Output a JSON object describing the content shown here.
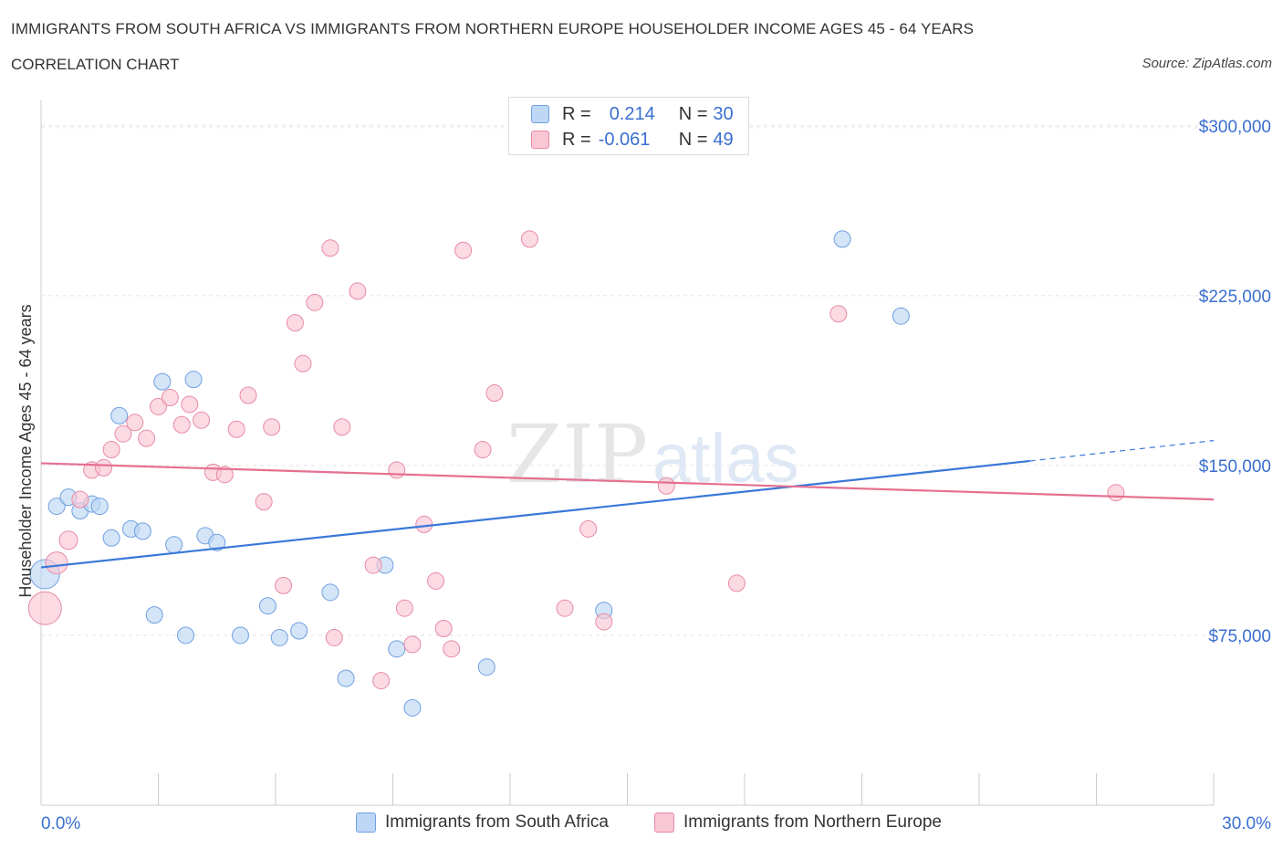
{
  "header": {
    "title": "IMMIGRANTS FROM SOUTH AFRICA VS IMMIGRANTS FROM NORTHERN EUROPE HOUSEHOLDER INCOME AGES 45 - 64 YEARS",
    "subtitle": "CORRELATION CHART",
    "source": "Source: ZipAtlas.com"
  },
  "legend": {
    "rows": [
      {
        "r_label": "R =",
        "r_value": "0.214",
        "n_label": "N =",
        "n_value": "30"
      },
      {
        "r_label": "R =",
        "r_value": "-0.061",
        "n_label": "N =",
        "n_value": "49"
      }
    ]
  },
  "bottom_legend": {
    "series_a": "Immigrants from South Africa",
    "series_b": "Immigrants from Northern Europe"
  },
  "watermark": {
    "zip": "ZIP",
    "atlas": "atlas"
  },
  "colors": {
    "blue": "#3a78d8",
    "pink": "#e5708f",
    "blue_fill": "#bdd7f5",
    "pink_fill": "#f9c6d4",
    "axis_text": "#3a6fd0"
  },
  "chart_data": {
    "type": "scatter",
    "title": "IMMIGRANTS FROM SOUTH AFRICA VS IMMIGRANTS FROM NORTHERN EUROPE HOUSEHOLDER INCOME AGES 45 - 64 YEARS",
    "xlabel": "",
    "ylabel": "Householder Income Ages 45 - 64 years",
    "xlim": [
      0,
      30
    ],
    "ylim": [
      0,
      300000
    ],
    "x_tick_labels": [
      "0.0%",
      "30.0%"
    ],
    "y_ticks": [
      75000,
      150000,
      225000,
      300000
    ],
    "y_tick_labels": [
      "$75,000",
      "$150,000",
      "$225,000",
      "$300,000"
    ],
    "grid": true,
    "legend_position": "top-center",
    "series": [
      {
        "name": "Immigrants from South Africa",
        "color": "#3a78d8",
        "trend": {
          "x": [
            0,
            25.3
          ],
          "y": [
            105000,
            152000
          ],
          "dashed_to_x": 30,
          "dashed_to_y": 161000
        },
        "points": [
          [
            0.1,
            102000,
            16
          ],
          [
            0.4,
            132000,
            9
          ],
          [
            0.7,
            136000,
            9
          ],
          [
            1.0,
            130000,
            9
          ],
          [
            1.3,
            133000,
            9
          ],
          [
            1.5,
            132000,
            9
          ],
          [
            1.8,
            118000,
            9
          ],
          [
            2.0,
            172000,
            9
          ],
          [
            2.3,
            122000,
            9
          ],
          [
            2.6,
            121000,
            9
          ],
          [
            2.9,
            84000,
            9
          ],
          [
            3.1,
            187000,
            9
          ],
          [
            3.4,
            115000,
            9
          ],
          [
            3.7,
            75000,
            9
          ],
          [
            3.9,
            188000,
            9
          ],
          [
            4.2,
            119000,
            9
          ],
          [
            4.5,
            116000,
            9
          ],
          [
            5.1,
            75000,
            9
          ],
          [
            5.8,
            88000,
            9
          ],
          [
            6.1,
            74000,
            9
          ],
          [
            6.6,
            77000,
            9
          ],
          [
            7.4,
            94000,
            9
          ],
          [
            7.8,
            56000,
            9
          ],
          [
            8.8,
            106000,
            9
          ],
          [
            9.1,
            69000,
            9
          ],
          [
            9.5,
            43000,
            9
          ],
          [
            11.4,
            61000,
            9
          ],
          [
            14.4,
            86000,
            9
          ],
          [
            20.5,
            250000,
            9
          ],
          [
            22.0,
            216000,
            9
          ]
        ]
      },
      {
        "name": "Immigrants from Northern Europe",
        "color": "#e5708f",
        "trend": {
          "x": [
            0,
            30
          ],
          "y": [
            151000,
            135000
          ]
        },
        "points": [
          [
            0.1,
            87000,
            18
          ],
          [
            0.4,
            107000,
            12
          ],
          [
            0.7,
            117000,
            10
          ],
          [
            1.0,
            135000,
            9
          ],
          [
            1.3,
            148000,
            9
          ],
          [
            1.6,
            149000,
            9
          ],
          [
            1.8,
            157000,
            9
          ],
          [
            2.1,
            164000,
            9
          ],
          [
            2.4,
            169000,
            9
          ],
          [
            2.7,
            162000,
            9
          ],
          [
            3.0,
            176000,
            9
          ],
          [
            3.3,
            180000,
            9
          ],
          [
            3.6,
            168000,
            9
          ],
          [
            3.8,
            177000,
            9
          ],
          [
            4.1,
            170000,
            9
          ],
          [
            4.4,
            147000,
            9
          ],
          [
            4.7,
            146000,
            9
          ],
          [
            5.0,
            166000,
            9
          ],
          [
            5.3,
            181000,
            9
          ],
          [
            5.7,
            134000,
            9
          ],
          [
            5.9,
            167000,
            9
          ],
          [
            6.2,
            97000,
            9
          ],
          [
            6.5,
            213000,
            9
          ],
          [
            6.7,
            195000,
            9
          ],
          [
            7.0,
            222000,
            9
          ],
          [
            7.4,
            246000,
            9
          ],
          [
            7.7,
            167000,
            9
          ],
          [
            7.5,
            74000,
            9
          ],
          [
            8.1,
            227000,
            9
          ],
          [
            8.5,
            106000,
            9
          ],
          [
            8.7,
            55000,
            9
          ],
          [
            9.1,
            148000,
            9
          ],
          [
            9.3,
            87000,
            9
          ],
          [
            9.5,
            71000,
            9
          ],
          [
            9.8,
            124000,
            9
          ],
          [
            10.1,
            99000,
            9
          ],
          [
            10.3,
            78000,
            9
          ],
          [
            10.5,
            69000,
            9
          ],
          [
            10.8,
            245000,
            9
          ],
          [
            11.3,
            157000,
            9
          ],
          [
            11.6,
            182000,
            9
          ],
          [
            12.5,
            250000,
            9
          ],
          [
            13.4,
            87000,
            9
          ],
          [
            14.0,
            122000,
            9
          ],
          [
            14.4,
            81000,
            9
          ],
          [
            16.0,
            141000,
            9
          ],
          [
            17.8,
            98000,
            9
          ],
          [
            20.4,
            217000,
            9
          ],
          [
            27.5,
            138000,
            9
          ]
        ]
      }
    ]
  }
}
